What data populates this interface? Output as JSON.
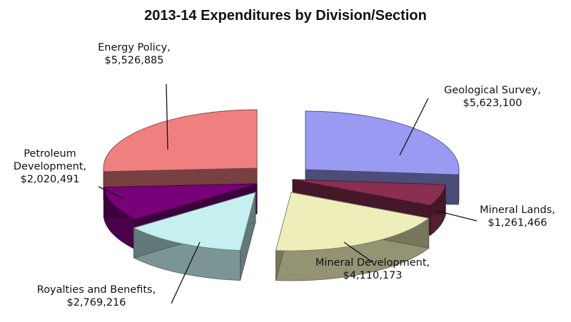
{
  "chart_data": {
    "type": "pie",
    "title": "2013-14 Expenditures by Division/Section",
    "style": "exploded 3D pie",
    "slices": [
      {
        "name": "Geological Survey",
        "value": 5623100,
        "value_label": "$5,623,100",
        "color": "#9a9af2"
      },
      {
        "name": "Mineral Lands",
        "value": 1261466,
        "value_label": "$1,261,466",
        "color": "#8a2f52"
      },
      {
        "name": "Mineral Development",
        "value": 4110173,
        "value_label": "$4,110,173",
        "color": "#eeeebb"
      },
      {
        "name": "Royalties and Benefits",
        "value": 2769216,
        "value_label": "$2,769,216",
        "color": "#c6f0f0"
      },
      {
        "name": "Petroleum Development",
        "value": 2020491,
        "value_label": "$2,020,491",
        "color": "#780078"
      },
      {
        "name": "Energy Policy",
        "value": 5526885,
        "value_label": "$5,526,885",
        "color": "#f08080"
      }
    ],
    "label_lines": {
      "Geological Survey": [
        "Geological Survey,",
        "$5,623,100"
      ],
      "Mineral Lands": [
        "Mineral Lands,",
        "$1,261,466"
      ],
      "Mineral Development": [
        "Mineral Development,",
        "$4,110,173"
      ],
      "Royalties and Benefits": [
        "Royalties and Benefits,",
        "$2,769,216"
      ],
      "Petroleum Development": [
        "Petroleum",
        "Development,",
        "$2,020,491"
      ],
      "Energy Policy": [
        "Energy Policy,",
        "$5,526,885"
      ]
    },
    "legend": "none"
  }
}
